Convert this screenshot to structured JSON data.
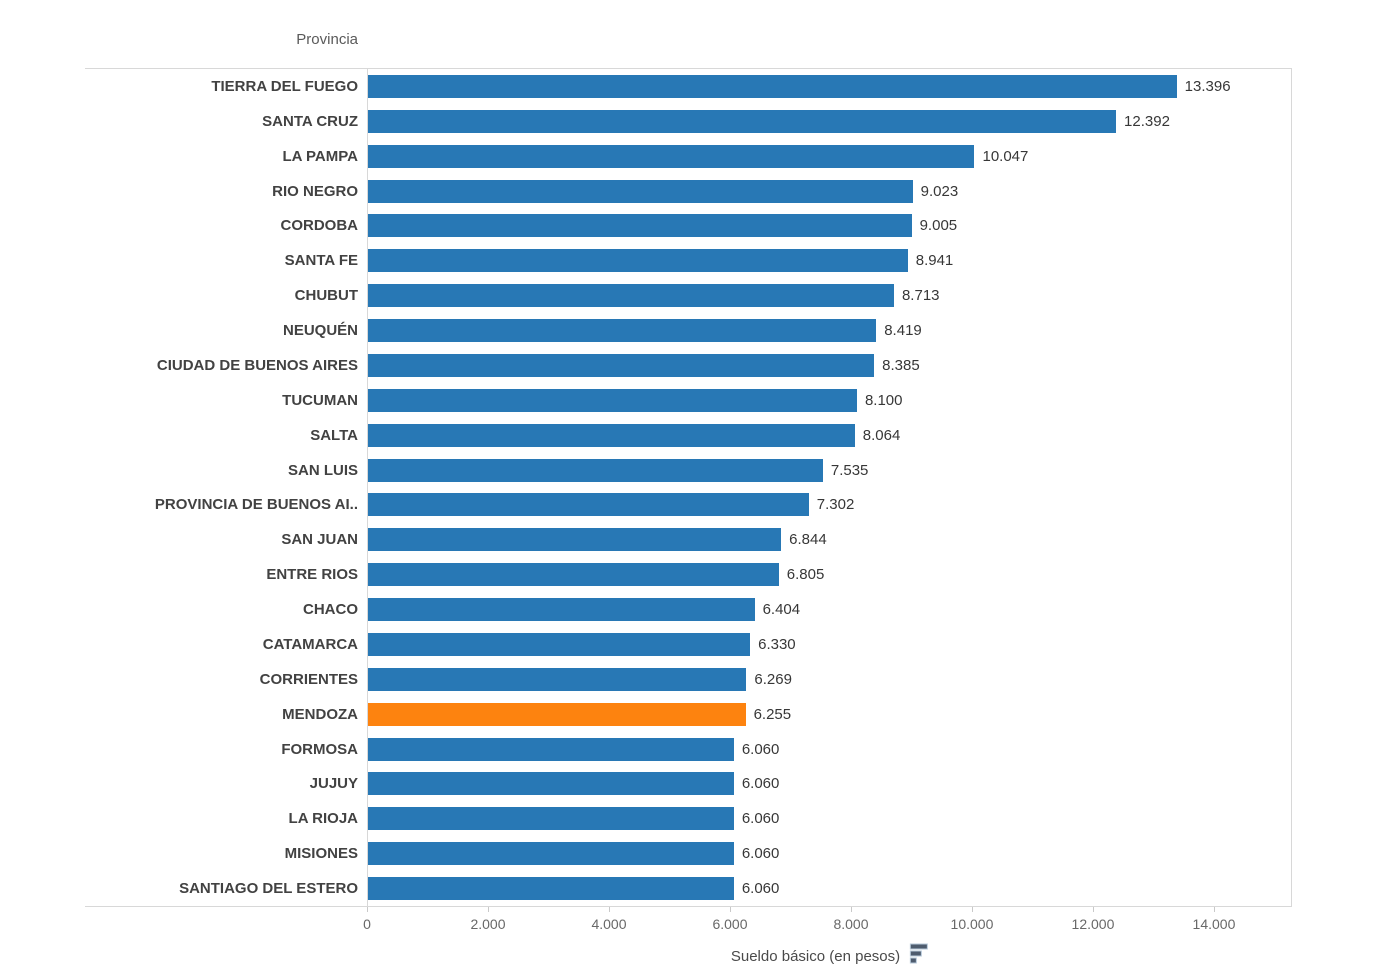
{
  "chart_data": {
    "type": "bar",
    "orientation": "horizontal",
    "column_header": "Provincia",
    "xlabel": "Sueldo básico (en pesos)",
    "categories": [
      "TIERRA DEL FUEGO",
      "SANTA CRUZ",
      "LA PAMPA",
      "RIO NEGRO",
      "CORDOBA",
      "SANTA FE",
      "CHUBUT",
      "NEUQUÉN",
      "CIUDAD DE BUENOS AIRES",
      "TUCUMAN",
      "SALTA",
      "SAN LUIS",
      "PROVINCIA DE BUENOS AI..",
      "SAN JUAN",
      "ENTRE RIOS",
      "CHACO",
      "CATAMARCA",
      "CORRIENTES",
      "MENDOZA",
      "FORMOSA",
      "JUJUY",
      "LA RIOJA",
      "MISIONES",
      "SANTIAGO DEL ESTERO"
    ],
    "values": [
      13396,
      12392,
      10047,
      9023,
      9005,
      8941,
      8713,
      8419,
      8385,
      8100,
      8064,
      7535,
      7302,
      6844,
      6805,
      6404,
      6330,
      6269,
      6255,
      6060,
      6060,
      6060,
      6060,
      6060
    ],
    "value_labels": [
      "13.396",
      "12.392",
      "10.047",
      "9.023",
      "9.005",
      "8.941",
      "8.713",
      "8.419",
      "8.385",
      "8.100",
      "8.064",
      "7.535",
      "7.302",
      "6.844",
      "6.805",
      "6.404",
      "6.330",
      "6.269",
      "6.255",
      "6.060",
      "6.060",
      "6.060",
      "6.060",
      "6.060"
    ],
    "highlighted_category": "MENDOZA",
    "x_ticks": [
      "0",
      "2.000",
      "4.000",
      "6.000",
      "8.000",
      "10.000",
      "12.000",
      "14.000"
    ],
    "x_tick_values": [
      0,
      2000,
      4000,
      6000,
      8000,
      10000,
      12000,
      14000
    ],
    "axis_max": 15290,
    "grid": false,
    "legend": false,
    "colors": {
      "bar": "#2878b5",
      "highlight": "#fd830f",
      "border": "#d8d8d8",
      "category_text": "#424242",
      "value_text": "#373737",
      "tick_text": "#686868"
    }
  },
  "icons": {
    "sort_descending": "sort-descending-icon",
    "sort_icon_color": "#4e5c6e"
  }
}
